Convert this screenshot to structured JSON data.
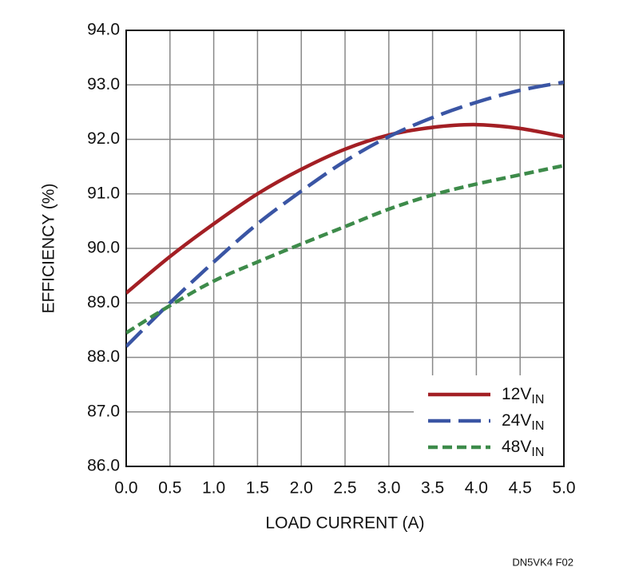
{
  "chart_data": {
    "type": "line",
    "x_label": "LOAD CURRENT (A)",
    "y_label": "EFFICIENCY (%)",
    "footnote": "DN5VK4 F02",
    "x": [
      0,
      0.5,
      1,
      1.5,
      2,
      2.5,
      3,
      3.5,
      4,
      4.5,
      5
    ],
    "series": [
      {
        "name": "12VIN",
        "color": "#a31f24",
        "dash": "solid",
        "values": [
          89.18,
          89.85,
          90.45,
          91.0,
          91.45,
          91.82,
          92.08,
          92.22,
          92.27,
          92.2,
          92.05
        ]
      },
      {
        "name": "24VIN",
        "color": "#3a55a4",
        "dash": "long",
        "values": [
          88.2,
          89.0,
          89.75,
          90.45,
          91.05,
          91.6,
          92.05,
          92.4,
          92.68,
          92.9,
          93.05
        ]
      },
      {
        "name": "48VIN",
        "color": "#3d8b4a",
        "dash": "short",
        "values": [
          88.45,
          88.95,
          89.4,
          89.75,
          90.08,
          90.4,
          90.72,
          90.98,
          91.18,
          91.35,
          91.52
        ]
      }
    ],
    "xlim": [
      0,
      5
    ],
    "ylim": [
      86,
      94
    ],
    "xticks": [
      {
        "value": 0,
        "label": "0.0"
      },
      0.5,
      {
        "value": 1,
        "label": "1.0"
      },
      1.5,
      {
        "value": 2,
        "label": "2.0"
      },
      2.5,
      {
        "value": 3,
        "label": "3.0"
      },
      3.5,
      {
        "value": 4,
        "label": "4.0"
      },
      4.5,
      {
        "value": 5,
        "label": "5.0"
      }
    ],
    "yticks": [
      {
        "value": 86,
        "label": "86.0"
      },
      {
        "value": 87,
        "label": "87.0"
      },
      {
        "value": 88,
        "label": "88.0"
      },
      {
        "value": 89,
        "label": "89.0"
      },
      {
        "value": 90,
        "label": "90.0"
      },
      {
        "value": 91,
        "label": "91.0"
      },
      {
        "value": 92,
        "label": "92.0"
      },
      {
        "value": 93,
        "label": "93.0"
      },
      {
        "value": 94,
        "label": "94.0"
      }
    ],
    "grid": true,
    "legend": "lower right"
  }
}
